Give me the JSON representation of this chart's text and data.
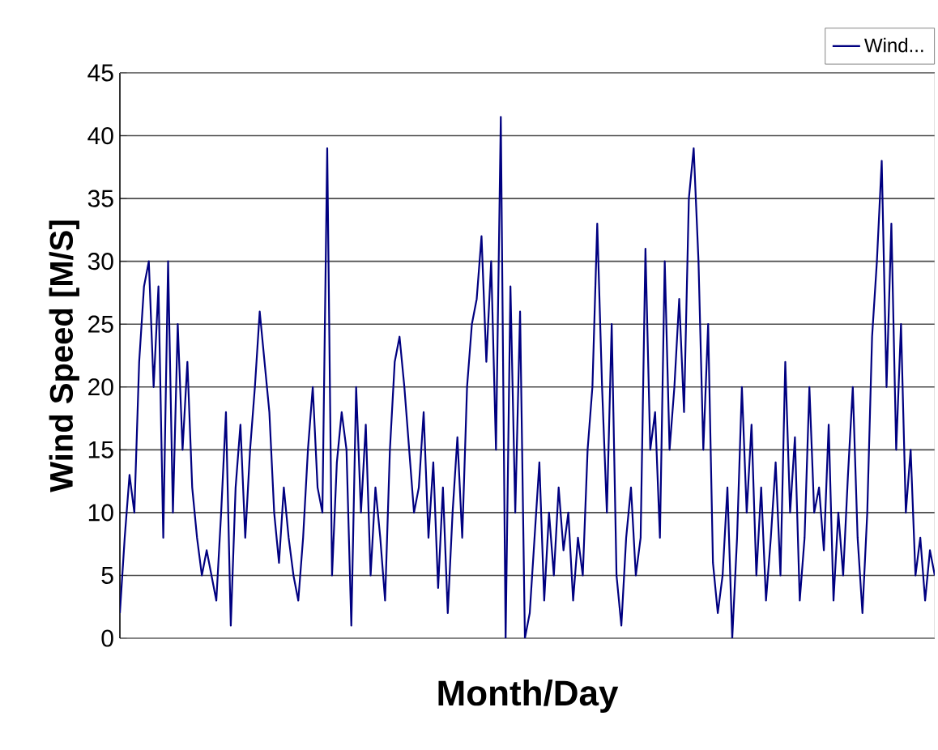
{
  "chart_data": {
    "type": "line",
    "xlabel": "Month/Day",
    "ylabel": "Wind Speed [M/S]",
    "ylim": [
      0,
      45
    ],
    "yticks": [
      0,
      5,
      10,
      15,
      20,
      25,
      30,
      35,
      40,
      45
    ],
    "grid": "y",
    "legend": "top right",
    "marker": "none",
    "line_style": "solid",
    "categories": [
      null,
      null,
      null,
      null,
      null,
      null,
      null,
      null,
      null,
      null,
      null,
      null,
      null,
      null,
      null,
      null,
      null,
      null,
      null,
      null,
      null,
      null,
      null,
      null,
      null,
      null,
      null,
      null,
      null,
      null,
      null,
      null,
      null,
      null,
      null,
      null,
      null,
      null,
      null,
      null,
      null,
      null,
      null,
      null,
      null,
      null,
      null,
      null,
      null,
      null,
      null,
      null,
      null,
      null,
      null,
      null,
      null,
      null,
      null,
      null,
      null,
      null,
      null,
      null,
      null,
      null,
      null,
      null,
      null,
      null,
      null,
      null,
      null,
      null,
      null,
      null,
      null,
      null,
      null,
      null,
      null,
      null,
      null,
      null,
      null,
      null,
      null,
      null,
      null,
      null,
      null,
      null,
      null,
      null,
      null,
      null,
      null,
      null,
      null,
      null,
      null,
      null,
      null,
      null,
      null,
      null,
      null,
      null,
      null,
      null,
      null,
      null,
      null,
      null,
      null,
      null,
      null,
      null,
      null,
      null,
      null,
      null,
      null,
      null,
      null,
      null,
      null,
      null,
      null,
      null,
      null,
      null,
      null,
      null,
      null,
      null,
      null,
      null,
      null,
      null,
      null,
      null,
      null,
      null,
      null,
      null,
      null,
      null,
      null,
      null,
      null,
      null,
      null,
      null,
      null,
      null,
      null,
      null,
      null,
      null,
      null,
      null,
      null,
      null,
      null,
      null,
      null,
      null,
      null,
      null
    ],
    "series": [
      {
        "name": "Wind...",
        "color": "#000080",
        "values": [
          2,
          8,
          13,
          10,
          22,
          28,
          30,
          20,
          28,
          8,
          30,
          10,
          25,
          15,
          22,
          12,
          8,
          5,
          7,
          5,
          3,
          10,
          18,
          1,
          12,
          17,
          8,
          15,
          20,
          26,
          22,
          18,
          10,
          6,
          12,
          8,
          5,
          3,
          8,
          15,
          20,
          12,
          10,
          39,
          5,
          14,
          18,
          15,
          1,
          20,
          10,
          17,
          5,
          12,
          8,
          3,
          15,
          22,
          24,
          20,
          15,
          10,
          12,
          18,
          8,
          14,
          4,
          12,
          2,
          10,
          16,
          8,
          20,
          25,
          27,
          32,
          22,
          30,
          15,
          41.5,
          0,
          28,
          10,
          26,
          0,
          2,
          8,
          14,
          3,
          10,
          5,
          12,
          7,
          10,
          3,
          8,
          5,
          15,
          20,
          33,
          20,
          10,
          25,
          5,
          1,
          8,
          12,
          5,
          8,
          31,
          15,
          18,
          8,
          30,
          15,
          20,
          27,
          18,
          35,
          39,
          30,
          15,
          25,
          6,
          2,
          5,
          12,
          0,
          8,
          20,
          10,
          17,
          5,
          12,
          3,
          8,
          14,
          5,
          22,
          10,
          16,
          3,
          8,
          20,
          10,
          12,
          7,
          17,
          3,
          10,
          5,
          13,
          20,
          8,
          2,
          10,
          24,
          30,
          38,
          20,
          33,
          15,
          25,
          10,
          15,
          5,
          8,
          3,
          7,
          5
        ]
      }
    ]
  }
}
